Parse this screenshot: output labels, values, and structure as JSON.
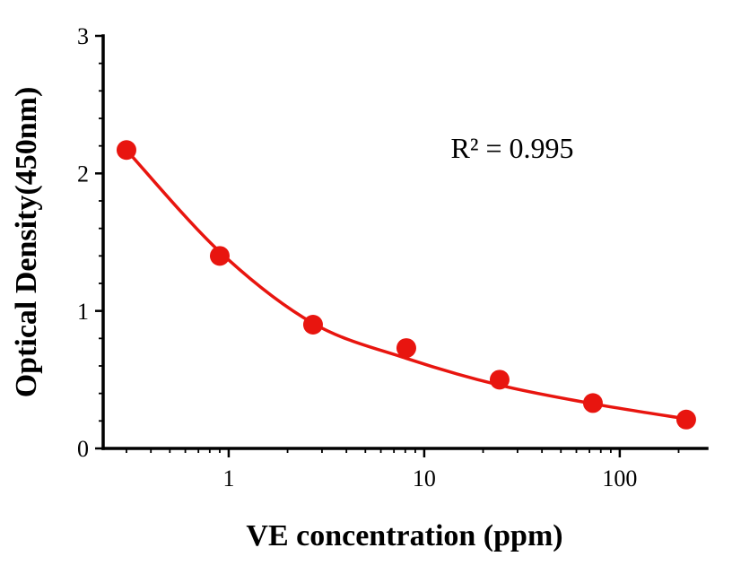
{
  "figure": {
    "background": "#ffffff"
  },
  "chart_data": {
    "type": "scatter",
    "title": "",
    "xlabel": "VE concentration (ppm)",
    "ylabel": "Optical Density(450nm)",
    "annotation": "R² = 0.995",
    "xscale": "log",
    "x": [
      0.3,
      0.9,
      2.7,
      8.1,
      24.3,
      72.9,
      218.7
    ],
    "y": [
      2.17,
      1.4,
      0.9,
      0.73,
      0.5,
      0.33,
      0.21
    ],
    "fit_y": [
      2.17,
      1.43,
      0.91,
      0.655,
      0.46,
      0.325,
      0.215
    ],
    "xlim": [
      0.228,
      279
    ],
    "ylim": [
      0,
      3
    ],
    "x_ticks": [
      1,
      10,
      100
    ],
    "x_tick_labels": [
      "1",
      "10",
      "100"
    ],
    "y_ticks": [
      0,
      1,
      2,
      3
    ],
    "y_tick_labels": [
      "0",
      "1",
      "2",
      "3"
    ],
    "y_minor_step": 0.2,
    "grid": false,
    "legend": false,
    "point_color": "#e8150f",
    "line_color": "#e8150f",
    "axis_color": "#000000"
  }
}
